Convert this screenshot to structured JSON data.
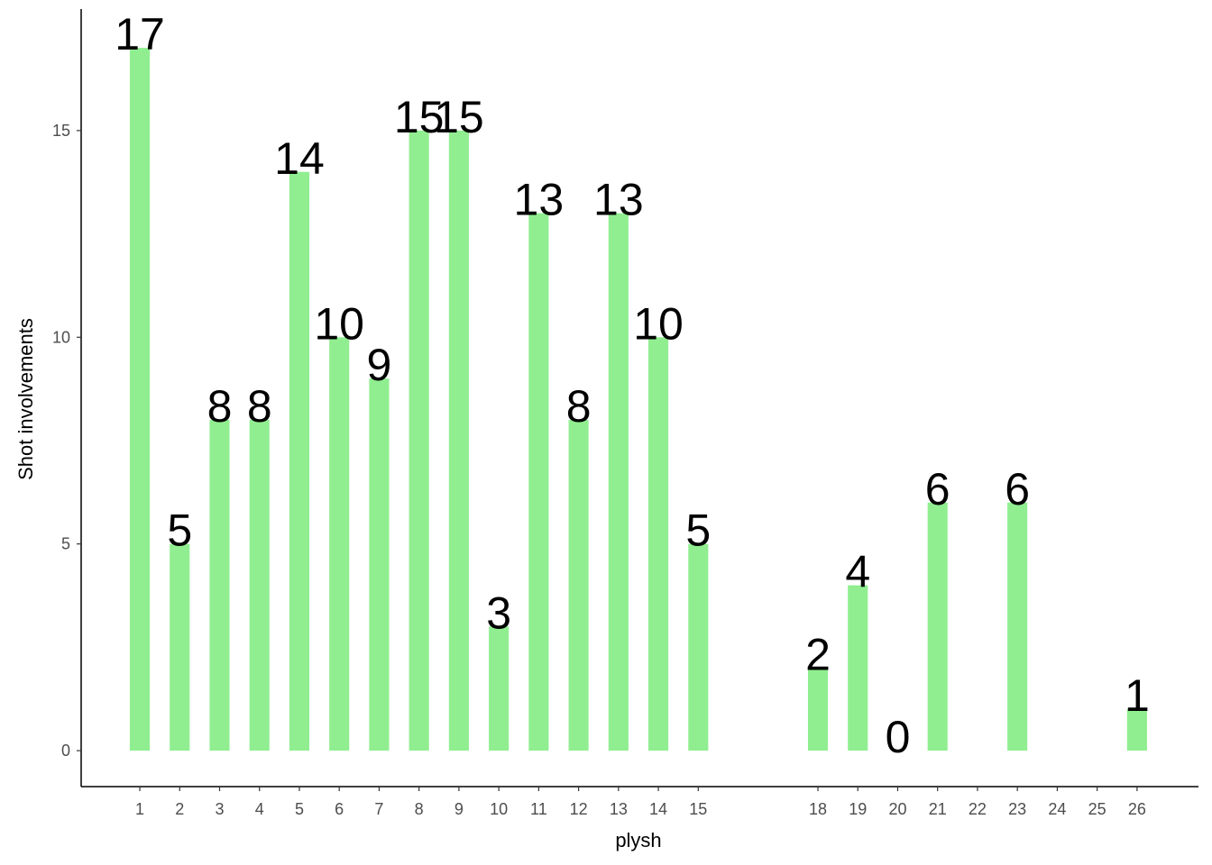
{
  "chart_data": {
    "type": "bar",
    "x_label": "plysh",
    "y_label": "Shot involvements",
    "x": [
      1,
      2,
      3,
      4,
      5,
      6,
      7,
      8,
      9,
      10,
      11,
      12,
      13,
      14,
      15,
      18,
      19,
      20,
      21,
      23,
      26
    ],
    "values": [
      17,
      5,
      8,
      8,
      14,
      10,
      9,
      15,
      15,
      3,
      13,
      8,
      13,
      10,
      5,
      2,
      4,
      0,
      6,
      6,
      1
    ],
    "color": "#90ee90",
    "xlim": [
      -0.47,
      27.54
    ],
    "ylim": [
      -0.87,
      17.94
    ],
    "xticks": [
      1,
      2,
      3,
      4,
      5,
      6,
      7,
      8,
      9,
      10,
      11,
      12,
      13,
      14,
      15,
      18,
      19,
      20,
      21,
      22,
      23,
      24,
      25,
      26
    ],
    "yticks": [
      0,
      5,
      10,
      15
    ],
    "grid": false
  }
}
